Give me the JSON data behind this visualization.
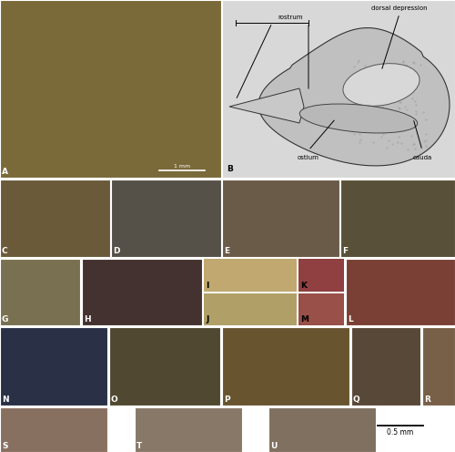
{
  "background_color": "#ffffff",
  "panel_colors": {
    "A": "#7a6a3a",
    "B": "#d8d8d8",
    "C": "#6a5a3a",
    "D": "#555048",
    "E": "#6a5a48",
    "F": "#585038",
    "G": "#787050",
    "H": "#443230",
    "I": "#c0a870",
    "J": "#b0a068",
    "K": "#904040",
    "L": "#7a4035",
    "M": "#985048",
    "N": "#2a3045",
    "O": "#504830",
    "P": "#685530",
    "Q": "#584838",
    "R": "#786048",
    "S": "#887060",
    "T": "#887868",
    "U": "#807060"
  },
  "label_fontsize": 6.5,
  "diag_label_fontsize": 5.5
}
